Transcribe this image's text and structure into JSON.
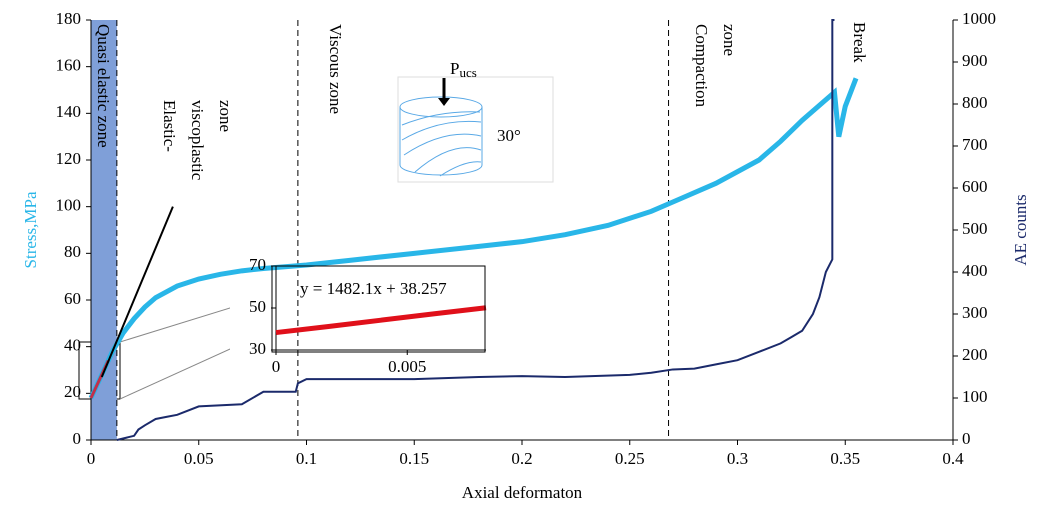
{
  "chart_data": [
    {
      "type": "line",
      "xlabel": "Axial deformaton",
      "ylabel": "Stress,MPa",
      "y2label": "AE counts",
      "xlim": [
        0,
        0.4
      ],
      "ylim": [
        0,
        180
      ],
      "y2lim": [
        0,
        1000
      ],
      "xticks": [
        0,
        0.05,
        0.1,
        0.15,
        0.2,
        0.25,
        0.3,
        0.35,
        0.4
      ],
      "yticks": [
        0,
        20,
        40,
        60,
        80,
        100,
        120,
        140,
        160,
        180
      ],
      "y2ticks": [
        0,
        100,
        200,
        300,
        400,
        500,
        600,
        700,
        800,
        900,
        1000
      ],
      "ylabel_color": "#29b6e8",
      "y2label_color": "#1b2a6b",
      "series": [
        {
          "color": "#29b6e8",
          "axis": "y",
          "x": [
            0,
            0.003,
            0.006,
            0.01,
            0.015,
            0.02,
            0.025,
            0.03,
            0.04,
            0.05,
            0.06,
            0.07,
            0.08,
            0.1,
            0.12,
            0.15,
            0.18,
            0.2,
            0.22,
            0.24,
            0.26,
            0.27,
            0.29,
            0.31,
            0.32,
            0.33,
            0.34,
            0.345,
            0.347,
            0.35,
            0.355
          ],
          "values": [
            18,
            24,
            30,
            38,
            46,
            52,
            57,
            61,
            66,
            69,
            71,
            72.5,
            73.5,
            75,
            77,
            80,
            83,
            85,
            88,
            92,
            98,
            102,
            110,
            120,
            128,
            137,
            145,
            149,
            130,
            143,
            155
          ]
        },
        {
          "color": "#1b2a6b",
          "axis": "y2",
          "x": [
            0.012,
            0.02,
            0.022,
            0.025,
            0.03,
            0.035,
            0.04,
            0.05,
            0.07,
            0.08,
            0.095,
            0.096,
            0.1,
            0.15,
            0.18,
            0.2,
            0.22,
            0.25,
            0.26,
            0.27,
            0.28,
            0.29,
            0.3,
            0.31,
            0.32,
            0.325,
            0.33,
            0.335,
            0.338,
            0.341,
            0.343,
            0.344,
            0.344,
            0.345
          ],
          "values": [
            0,
            10,
            25,
            35,
            50,
            55,
            60,
            80,
            85,
            115,
            115,
            135,
            145,
            145,
            150,
            152,
            150,
            155,
            160,
            168,
            170,
            180,
            190,
            210,
            230,
            245,
            260,
            300,
            340,
            400,
            420,
            430,
            1000,
            1000
          ]
        },
        {
          "color": "#c0304a",
          "axis": "y",
          "x": [
            0,
            0.004,
            0.008
          ],
          "values": [
            18,
            26,
            34
          ]
        },
        {
          "color": "#000000",
          "axis": "y",
          "x": [
            0.005,
            0.038
          ],
          "values": [
            27,
            100
          ]
        }
      ],
      "zones": {
        "boundaries": [
          0.012,
          0.096,
          0.268
        ],
        "shade_color": "#7f9fd8"
      },
      "annotations": [
        {
          "lines": [
            "Quasi elastic zone"
          ]
        },
        {
          "lines": [
            "Elastic-",
            "viscoplastic",
            "zone"
          ]
        },
        {
          "lines": [
            "Viscous zone"
          ]
        },
        {
          "lines": [
            "Compaction",
            "zone"
          ]
        },
        {
          "lines": [
            "Break"
          ]
        }
      ],
      "icon": {
        "load": "P",
        "load_sub": "ucs",
        "angle": "30°"
      }
    },
    {
      "type": "line",
      "equation": "y = 1482.1x + 38.257",
      "xlim": [
        0,
        0.008
      ],
      "ylim": [
        30,
        70
      ],
      "xticks": [
        0,
        0.005
      ],
      "yticks": [
        30,
        50,
        70
      ],
      "series": [
        {
          "color": "#e0101a",
          "axis": "y",
          "x": [
            0,
            0.002,
            0.004,
            0.006,
            0.008
          ],
          "values": [
            38.3,
            41.2,
            44.2,
            47.2,
            50.1
          ]
        }
      ]
    }
  ]
}
